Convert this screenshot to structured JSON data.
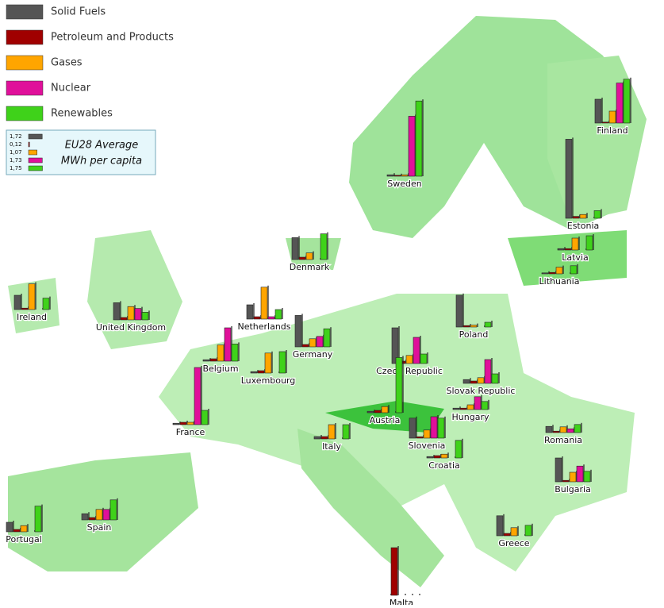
{
  "chart_data": {
    "type": "bar",
    "categories": [
      "Finland",
      "Sweden",
      "Estonia",
      "Latvia",
      "Lithuania",
      "Denmark",
      "Ireland",
      "United Kingdom",
      "Netherlands",
      "Belgium",
      "Luxembourg",
      "Germany",
      "France",
      "Poland",
      "Czech Republic",
      "Slovak Republic",
      "Hungary",
      "Austria",
      "Slovenia",
      "Croatia",
      "Italy",
      "Romania",
      "Bulgaria",
      "Greece",
      "Spain",
      "Portugal",
      "Malta"
    ],
    "series": [
      {
        "name": "Solid Fuels",
        "color": "#555555",
        "values": [
          2.5,
          0.15,
          8.3,
          0.15,
          0.1,
          2.3,
          1.5,
          1.8,
          1.5,
          0.15,
          0.15,
          3.3,
          0.15,
          3.35,
          3.75,
          0.4,
          0.15,
          0.15,
          2.1,
          0.15,
          0.25,
          0.65,
          2.5,
          2.1,
          0.65,
          1.0,
          0
        ]
      },
      {
        "name": "Petroleum and Products",
        "color": "#a00000",
        "values": [
          0.1,
          0.1,
          0.2,
          0.15,
          0.15,
          0.25,
          0.15,
          0.25,
          0.25,
          0.25,
          0.25,
          0.25,
          0.25,
          0.15,
          0.25,
          0.25,
          0.15,
          0.25,
          0.15,
          0.25,
          0.25,
          0.15,
          0.15,
          0.25,
          0.25,
          0.25,
          5.0
        ]
      },
      {
        "name": "Gases",
        "color": "#ffa500",
        "values": [
          1.25,
          0.15,
          0.4,
          1.25,
          0.7,
          0.7,
          2.7,
          1.4,
          3.35,
          1.7,
          2.1,
          0.85,
          0.25,
          0.2,
          0.85,
          0.6,
          0.5,
          0.65,
          0.85,
          0.4,
          1.5,
          0.6,
          1.0,
          0.85,
          1.1,
          0.65,
          0
        ]
      },
      {
        "name": "Nuclear",
        "color": "#e0109a",
        "values": [
          4.2,
          6.3,
          0,
          0,
          0,
          0,
          0,
          1.2,
          0.25,
          3.5,
          0,
          1.1,
          6.0,
          0,
          2.75,
          2.5,
          1.35,
          0,
          2.25,
          0,
          0,
          0.4,
          1.65,
          0,
          1.1,
          0,
          0
        ]
      },
      {
        "name": "Renewables",
        "color": "#3fd21a",
        "values": [
          4.6,
          7.9,
          0.8,
          1.5,
          0.85,
          2.7,
          1.2,
          0.8,
          1.0,
          1.8,
          2.25,
          1.9,
          1.5,
          0.5,
          1.0,
          1.0,
          0.85,
          5.8,
          2.1,
          1.85,
          1.5,
          0.85,
          1.1,
          1.1,
          2.1,
          2.7,
          0
        ]
      }
    ],
    "average": {
      "label_lines": [
        "EU28 Average",
        "MWh per capita"
      ],
      "values": [
        1.72,
        0.12,
        1.07,
        1.73,
        1.75
      ],
      "value_labels": [
        "1,72",
        "0,12",
        "1,07",
        "1,73",
        "1,75"
      ]
    }
  }
}
